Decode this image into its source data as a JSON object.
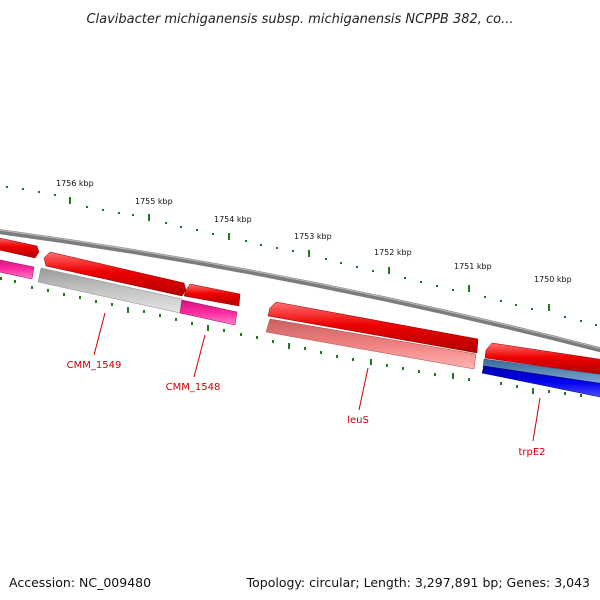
{
  "title": "Clavibacter michiganensis subsp. michiganensis NCPPB 382, co...",
  "accession_text": "Accession: NC_009480",
  "topology_text": "Topology: circular; Length: 3,297,891 bp; Genes: 3,043",
  "colors": {
    "backbone": "#8a8a8a",
    "forward_cds": "#ee0000",
    "reverse_cds_grey": "#bdbdbd",
    "reverse_cds_magenta": "#ff2aa0",
    "reverse_cds_pink": "#f08080",
    "reverse_cds_blue": "#0000ee",
    "reverse_cds_steel": "#4f7fb0",
    "tick": "#1f7a1f",
    "gene_label": "#cc0000"
  },
  "kbp_labels": [
    "1756 kbp",
    "1755 kbp",
    "1754 kbp",
    "1753 kbp",
    "1752 kbp",
    "1751 kbp",
    "1750 kbp"
  ],
  "gene_labels": [
    "CMM_1549",
    "CMM_1548",
    "leuS",
    "trpE2"
  ]
}
